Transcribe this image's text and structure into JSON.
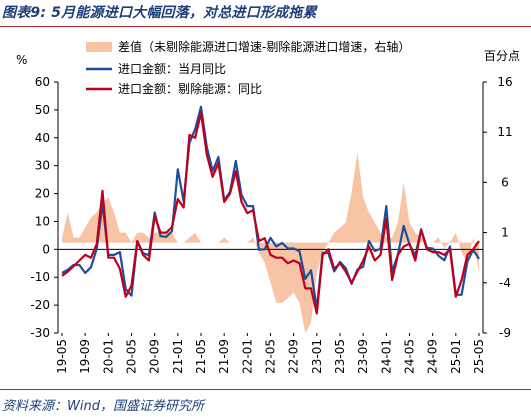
{
  "title": "图表9:  5月能源进口大幅回落，对总进口形成拖累",
  "source": "资料来源：Wind，国盛证券研究所",
  "chart_data": {
    "type": "line",
    "left_axis_label": "%",
    "right_axis_label": "百分点",
    "ylim_left": [
      -30,
      60
    ],
    "yticks_left": [
      "60",
      "50",
      "40",
      "30",
      "20",
      "10",
      "0",
      "-10",
      "-20",
      "-30"
    ],
    "ylim_right": [
      -9,
      16
    ],
    "yticks_right": [
      "16",
      "11",
      "6",
      "1",
      "-4",
      "-9"
    ],
    "xticks": [
      "19-05",
      "19-09",
      "20-01",
      "20-05",
      "20-09",
      "21-01",
      "21-05",
      "21-09",
      "22-01",
      "22-05",
      "22-09",
      "23-01",
      "23-05",
      "23-09",
      "24-01",
      "24-05",
      "24-09",
      "25-01",
      "25-05"
    ],
    "months": [
      "19-05",
      "19-06",
      "19-07",
      "19-08",
      "19-09",
      "19-10",
      "19-11",
      "19-12",
      "20-01",
      "20-02",
      "20-03",
      "20-04",
      "20-05",
      "20-06",
      "20-07",
      "20-08",
      "20-09",
      "20-10",
      "20-11",
      "20-12",
      "21-01",
      "21-02",
      "21-03",
      "21-04",
      "21-05",
      "21-06",
      "21-07",
      "21-08",
      "21-09",
      "21-10",
      "21-11",
      "21-12",
      "22-01",
      "22-02",
      "22-03",
      "22-04",
      "22-05",
      "22-06",
      "22-07",
      "22-08",
      "22-09",
      "22-10",
      "22-11",
      "22-12",
      "23-01",
      "23-02",
      "23-03",
      "23-04",
      "23-05",
      "23-06",
      "23-07",
      "23-08",
      "23-09",
      "23-10",
      "23-11",
      "23-12",
      "24-01",
      "24-02",
      "24-03",
      "24-04",
      "24-05",
      "24-06",
      "24-07",
      "24-08",
      "24-09",
      "24-10",
      "24-11",
      "24-12",
      "25-01",
      "25-02",
      "25-03",
      "25-04",
      "25-05"
    ],
    "series": [
      {
        "name": "差值（未剔除能源进口增速-剔除能源进口增速，右轴）",
        "axis": "right",
        "type": "area",
        "color": "#f7c4a5",
        "values": [
          0.5,
          3,
          0.5,
          0.5,
          1.5,
          2.5,
          3,
          4,
          4.5,
          3,
          1,
          1,
          0,
          1,
          1,
          0.5,
          1,
          1,
          1,
          1,
          0,
          0,
          0.5,
          1,
          0,
          0,
          0,
          0,
          0.5,
          0,
          0,
          0,
          0,
          0.5,
          -1,
          -2,
          -4,
          -6,
          -6,
          -5.5,
          -5,
          -6,
          -9,
          -8,
          -3,
          -1,
          0,
          1,
          1.5,
          2,
          5,
          9,
          4.5,
          3,
          2,
          1,
          0.5,
          0.5,
          2,
          6,
          2,
          1,
          0.5,
          0,
          0,
          0.5,
          -0.5,
          0,
          1,
          -1,
          -2,
          0.5,
          -3
        ]
      },
      {
        "name": "进口金额：当月同比",
        "axis": "left",
        "type": "line",
        "color": "#1f4e9c",
        "values": [
          -8.5,
          -7.3,
          -5.6,
          -5.6,
          -8.5,
          -6.4,
          0.3,
          16.3,
          -2.0,
          -2.0,
          -1.0,
          -14.3,
          -16.6,
          2.9,
          -1.4,
          -2.1,
          13.2,
          4.7,
          4.5,
          6.5,
          28.7,
          17.3,
          38.1,
          43.1,
          51.1,
          36.7,
          28.1,
          33.1,
          17.6,
          20.6,
          31.7,
          19.5,
          15.5,
          15.5,
          -0.1,
          0.0,
          4.1,
          1.0,
          2.3,
          0.3,
          0.3,
          -0.7,
          -10.6,
          -7.5,
          -21.3,
          -1.2,
          -1.4,
          -7.9,
          -4.5,
          -6.8,
          -12.4,
          -7.3,
          -6.2,
          3.0,
          -0.6,
          0.2,
          15.5,
          -8.1,
          -1.9,
          8.4,
          1.8,
          -2.3,
          7.2,
          0.5,
          0.3,
          -2.3,
          -3.9,
          1.0,
          -16.3,
          -16.3,
          -4.3,
          -0.2,
          -3.4
        ]
      },
      {
        "name": "进口金额：剔除能源：同比",
        "axis": "left",
        "type": "line",
        "color": "#c0001a",
        "values": [
          -9.5,
          -8,
          -6,
          -4,
          -2,
          -3,
          2,
          21,
          -3,
          -3,
          -7,
          -17,
          -13,
          3,
          -2,
          -4,
          12,
          6,
          6,
          8,
          18,
          15,
          41,
          40,
          49,
          34,
          26,
          31,
          17,
          20,
          28,
          17,
          13,
          14,
          3,
          4,
          -2,
          -3,
          -3,
          -5,
          -4,
          -5,
          -14,
          -14,
          -23,
          -2,
          0,
          -7,
          -5,
          -8,
          -12,
          -8,
          -4,
          1,
          -4,
          -2,
          11,
          -11,
          -2,
          1,
          2,
          -4,
          7,
          0,
          -1,
          -1,
          -2,
          0,
          -17,
          -11,
          -2,
          0,
          3
        ]
      }
    ]
  }
}
